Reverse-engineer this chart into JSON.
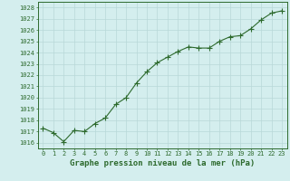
{
  "x": [
    0,
    1,
    2,
    3,
    4,
    5,
    6,
    7,
    8,
    9,
    10,
    11,
    12,
    13,
    14,
    15,
    16,
    17,
    18,
    19,
    20,
    21,
    22,
    23
  ],
  "y": [
    1017.3,
    1016.9,
    1016.1,
    1017.1,
    1017.0,
    1017.7,
    1018.2,
    1019.4,
    1020.0,
    1021.3,
    1022.3,
    1023.1,
    1023.6,
    1024.1,
    1024.5,
    1024.4,
    1024.4,
    1025.0,
    1025.4,
    1025.5,
    1026.1,
    1026.9,
    1027.5,
    1027.7
  ],
  "line_color": "#2d6a2d",
  "marker_color": "#2d6a2d",
  "bg_color": "#d4eeee",
  "grid_color": "#b8d8d8",
  "title": "Graphe pression niveau de la mer (hPa)",
  "ylim_min": 1015.5,
  "ylim_max": 1028.5,
  "yticks": [
    1016,
    1017,
    1018,
    1019,
    1020,
    1021,
    1022,
    1023,
    1024,
    1025,
    1026,
    1027,
    1028
  ],
  "xlim_min": -0.5,
  "xlim_max": 23.5,
  "xticks": [
    0,
    1,
    2,
    3,
    4,
    5,
    6,
    7,
    8,
    9,
    10,
    11,
    12,
    13,
    14,
    15,
    16,
    17,
    18,
    19,
    20,
    21,
    22,
    23
  ],
  "title_fontsize": 6.5,
  "tick_fontsize": 5.0,
  "line_width": 0.8,
  "marker_size": 2.5
}
